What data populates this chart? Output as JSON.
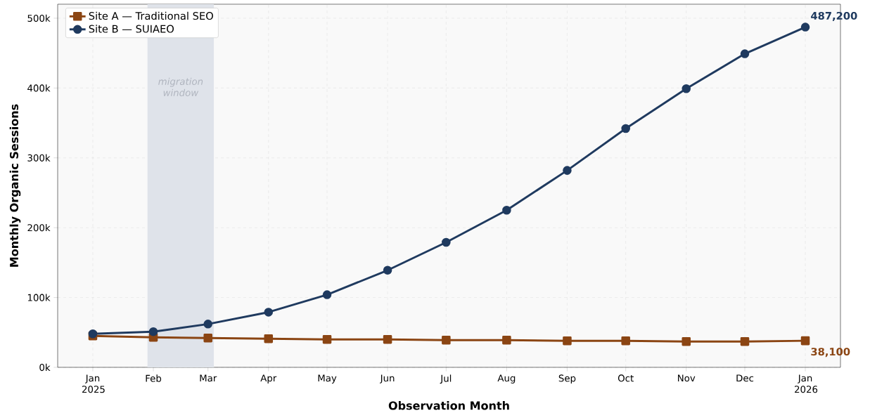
{
  "chart_data": {
    "type": "line",
    "xlabel": "Observation Month",
    "ylabel": "Monthly Organic Sessions",
    "x": [
      "2025-01-01",
      "2025-02-01",
      "2025-03-01",
      "2025-04-01",
      "2025-05-01",
      "2025-06-01",
      "2025-07-01",
      "2025-08-01",
      "2025-09-01",
      "2025-10-01",
      "2025-11-01",
      "2025-12-01",
      "2026-01-01"
    ],
    "series": [
      {
        "name": "Site A — Traditional SEO",
        "color": "#8b4513",
        "marker": "square",
        "values": [
          45000,
          43000,
          42000,
          41000,
          40000,
          40000,
          39000,
          39000,
          38000,
          38000,
          37000,
          37000,
          38100
        ]
      },
      {
        "name": "Site B — SUIAEO",
        "color": "#1f3a5f",
        "marker": "circle",
        "values": [
          48000,
          51000,
          62000,
          79000,
          104000,
          139000,
          179000,
          225000,
          282000,
          342000,
          399000,
          449000,
          487200
        ]
      }
    ],
    "xlim": [
      "2024-12-14",
      "2026-01-19"
    ],
    "xticks": [
      {
        "value": "2025-01-01",
        "label": "Jan 2025"
      },
      {
        "value": "2025-02-01",
        "label": "Feb"
      },
      {
        "value": "2025-03-01",
        "label": "Mar"
      },
      {
        "value": "2025-04-01",
        "label": "Apr"
      },
      {
        "value": "2025-05-01",
        "label": "May"
      },
      {
        "value": "2025-06-01",
        "label": "Jun"
      },
      {
        "value": "2025-07-01",
        "label": "Jul"
      },
      {
        "value": "2025-08-01",
        "label": "Aug"
      },
      {
        "value": "2025-09-01",
        "label": "Sep"
      },
      {
        "value": "2025-10-01",
        "label": "Oct"
      },
      {
        "value": "2025-11-01",
        "label": "Nov"
      },
      {
        "value": "2025-12-01",
        "label": "Dec"
      },
      {
        "value": "2026-01-01",
        "label": "Jan 2026"
      }
    ],
    "ylim": [
      0,
      520000
    ],
    "yticks": [
      {
        "value": 0,
        "label": "0k"
      },
      {
        "value": 100000,
        "label": "100k"
      },
      {
        "value": 200000,
        "label": "200k"
      },
      {
        "value": 300000,
        "label": "300k"
      },
      {
        "value": 400000,
        "label": "400k"
      },
      {
        "value": 500000,
        "label": "500k"
      }
    ],
    "bands": [
      {
        "axis": "x",
        "from": "2025-01-29",
        "to": "2025-03-04",
        "label": "migration window",
        "color": "#dfe3ea"
      }
    ],
    "annotations": [
      {
        "text": "487,200",
        "x": "2026-01-01",
        "y": 487200
      },
      {
        "text": "38,100",
        "x": "2026-01-01",
        "y": 38100
      }
    ],
    "grid": true,
    "legend": "top left",
    "line_style": "solid"
  }
}
